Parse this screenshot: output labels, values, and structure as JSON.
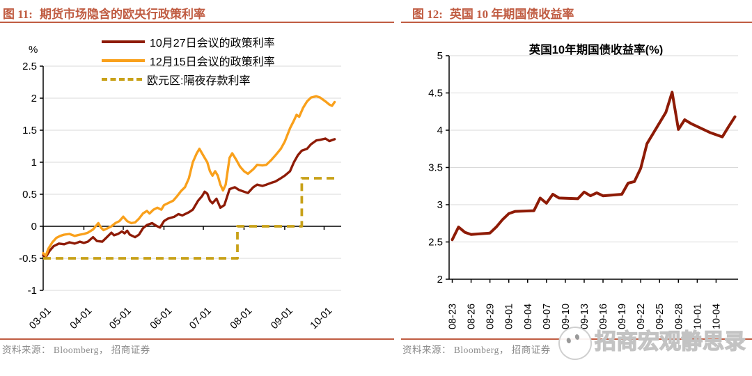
{
  "colors": {
    "accent": "#c05c42",
    "dark_red": "#8e1b06",
    "orange": "#f9a01b",
    "gold": "#c8a118",
    "grid": "#d9d9d9",
    "axis": "#000000",
    "source_text": "#8a8a8a",
    "watermark": "#c9c9c9"
  },
  "left_panel": {
    "figure_label": "图 11:",
    "figure_title": "期货市场隐含的欧央行政策利率",
    "source": "资料来源： Bloomberg， 招商证券"
  },
  "right_panel": {
    "figure_label": "图 12:",
    "figure_title": "英国 10 年期国债收益率",
    "source": "资料来源： Bloomberg， 招商证券"
  },
  "watermark": {
    "text": "招商宏观静思录",
    "icon": "wechat-mascot-icon"
  },
  "chart_data": [
    {
      "type": "line",
      "title": "",
      "unit_label": "%",
      "grid": true,
      "legend_position": "top-center",
      "x_axis_at": 0,
      "x_domain": [
        0,
        227
      ],
      "ylim": [
        -1,
        2.5
      ],
      "y_ticks": [
        2.5,
        2,
        1.5,
        1,
        0.5,
        0,
        -0.5,
        -1
      ],
      "x_tick_labels": [
        "03-01",
        "04-01",
        "05-01",
        "06-01",
        "07-01",
        "08-01",
        "09-01",
        "10-01"
      ],
      "x_tick_days": [
        0,
        31,
        61,
        92,
        122,
        153,
        184,
        214
      ],
      "series": [
        {
          "name": "10月27日会议的政策利率",
          "color_key": "dark_red",
          "style": "solid",
          "width": 3.4,
          "points": [
            [
              0,
              -0.45
            ],
            [
              2,
              -0.48
            ],
            [
              5,
              -0.38
            ],
            [
              8,
              -0.31
            ],
            [
              12,
              -0.27
            ],
            [
              16,
              -0.28
            ],
            [
              20,
              -0.25
            ],
            [
              24,
              -0.27
            ],
            [
              28,
              -0.24
            ],
            [
              31,
              -0.26
            ],
            [
              34,
              -0.24
            ],
            [
              38,
              -0.17
            ],
            [
              41,
              -0.23
            ],
            [
              45,
              -0.24
            ],
            [
              48,
              -0.18
            ],
            [
              52,
              -0.1
            ],
            [
              54,
              -0.14
            ],
            [
              57,
              -0.12
            ],
            [
              60,
              -0.08
            ],
            [
              62,
              -0.11
            ],
            [
              64,
              -0.07
            ],
            [
              66,
              -0.13
            ],
            [
              70,
              -0.17
            ],
            [
              73,
              -0.13
            ],
            [
              76,
              -0.03
            ],
            [
              79,
              0.02
            ],
            [
              83,
              0.05
            ],
            [
              86,
              0.01
            ],
            [
              89,
              -0.02
            ],
            [
              92,
              0.08
            ],
            [
              95,
              0.12
            ],
            [
              100,
              0.15
            ],
            [
              103,
              0.19
            ],
            [
              106,
              0.17
            ],
            [
              111,
              0.22
            ],
            [
              114,
              0.26
            ],
            [
              118,
              0.4
            ],
            [
              121,
              0.47
            ],
            [
              123,
              0.54
            ],
            [
              125,
              0.51
            ],
            [
              127,
              0.4
            ],
            [
              129,
              0.36
            ],
            [
              132,
              0.43
            ],
            [
              135,
              0.29
            ],
            [
              138,
              0.33
            ],
            [
              142,
              0.58
            ],
            [
              146,
              0.61
            ],
            [
              149,
              0.57
            ],
            [
              153,
              0.54
            ],
            [
              156,
              0.52
            ],
            [
              160,
              0.61
            ],
            [
              163,
              0.65
            ],
            [
              167,
              0.63
            ],
            [
              170,
              0.65
            ],
            [
              174,
              0.68
            ],
            [
              177,
              0.7
            ],
            [
              181,
              0.75
            ],
            [
              184,
              0.79
            ],
            [
              188,
              0.86
            ],
            [
              191,
              1.0
            ],
            [
              194,
              1.11
            ],
            [
              197,
              1.18
            ],
            [
              201,
              1.21
            ],
            [
              204,
              1.28
            ],
            [
              208,
              1.34
            ],
            [
              211,
              1.35
            ],
            [
              215,
              1.37
            ],
            [
              218,
              1.33
            ],
            [
              222,
              1.36
            ]
          ]
        },
        {
          "name": "12月15日会议的政策利率",
          "color_key": "orange",
          "style": "solid",
          "width": 3.4,
          "points": [
            [
              0,
              -0.42
            ],
            [
              2,
              -0.46
            ],
            [
              4,
              -0.35
            ],
            [
              7,
              -0.25
            ],
            [
              10,
              -0.18
            ],
            [
              13,
              -0.15
            ],
            [
              16,
              -0.13
            ],
            [
              20,
              -0.12
            ],
            [
              24,
              -0.15
            ],
            [
              28,
              -0.13
            ],
            [
              31,
              -0.12
            ],
            [
              34,
              -0.1
            ],
            [
              38,
              -0.05
            ],
            [
              42,
              0.05
            ],
            [
              44,
              -0.02
            ],
            [
              46,
              -0.06
            ],
            [
              49,
              -0.03
            ],
            [
              52,
              0.0
            ],
            [
              55,
              0.05
            ],
            [
              58,
              0.08
            ],
            [
              61,
              0.15
            ],
            [
              64,
              0.08
            ],
            [
              67,
              0.05
            ],
            [
              70,
              0.06
            ],
            [
              73,
              0.12
            ],
            [
              76,
              0.2
            ],
            [
              79,
              0.24
            ],
            [
              81,
              0.2
            ],
            [
              84,
              0.26
            ],
            [
              87,
              0.29
            ],
            [
              90,
              0.26
            ],
            [
              92,
              0.33
            ],
            [
              95,
              0.36
            ],
            [
              99,
              0.4
            ],
            [
              102,
              0.47
            ],
            [
              105,
              0.55
            ],
            [
              108,
              0.61
            ],
            [
              111,
              0.75
            ],
            [
              114,
              1.0
            ],
            [
              117,
              1.14
            ],
            [
              119,
              1.21
            ],
            [
              121,
              1.14
            ],
            [
              123,
              1.07
            ],
            [
              125,
              1.0
            ],
            [
              127,
              0.86
            ],
            [
              129,
              0.79
            ],
            [
              131,
              0.86
            ],
            [
              133,
              0.79
            ],
            [
              135,
              0.65
            ],
            [
              137,
              0.56
            ],
            [
              139,
              0.65
            ],
            [
              142,
              1.07
            ],
            [
              144,
              1.14
            ],
            [
              147,
              1.04
            ],
            [
              150,
              0.93
            ],
            [
              153,
              0.86
            ],
            [
              156,
              0.82
            ],
            [
              160,
              0.89
            ],
            [
              163,
              0.96
            ],
            [
              167,
              0.95
            ],
            [
              170,
              0.96
            ],
            [
              174,
              1.04
            ],
            [
              177,
              1.11
            ],
            [
              181,
              1.21
            ],
            [
              184,
              1.32
            ],
            [
              188,
              1.53
            ],
            [
              191,
              1.65
            ],
            [
              193,
              1.74
            ],
            [
              195,
              1.71
            ],
            [
              198,
              1.85
            ],
            [
              201,
              1.95
            ],
            [
              204,
              2.01
            ],
            [
              208,
              2.03
            ],
            [
              211,
              2.01
            ],
            [
              215,
              1.95
            ],
            [
              218,
              1.9
            ],
            [
              220,
              1.88
            ],
            [
              222,
              1.94
            ]
          ]
        },
        {
          "name": "欧元区:隔夜存款利率",
          "color_key": "gold",
          "style": "dashed",
          "width": 3.8,
          "points": [
            [
              0,
              -0.5
            ],
            [
              148,
              -0.5
            ],
            [
              148,
              0
            ],
            [
              197,
              0
            ],
            [
              197,
              0.75
            ],
            [
              222,
              0.75
            ]
          ]
        }
      ]
    },
    {
      "type": "line",
      "title": "英国10年期国债收益率(%)",
      "grid": true,
      "x_axis_at": 2,
      "x_domain": [
        -0.5,
        45.5
      ],
      "ylim": [
        2,
        5
      ],
      "y_ticks": [
        5,
        4.5,
        4,
        3.5,
        3,
        2.5,
        2
      ],
      "x_tick_labels": [
        "08-23",
        "08-26",
        "08-29",
        "09-01",
        "09-04",
        "09-07",
        "09-10",
        "09-13",
        "09-16",
        "09-19",
        "09-22",
        "09-25",
        "09-28",
        "10-01",
        "10-04"
      ],
      "x_tick_days": [
        0,
        3,
        6,
        9,
        12,
        15,
        18,
        21,
        24,
        27,
        30,
        33,
        36,
        39,
        42
      ],
      "series": [
        {
          "name": "英国10年期国债收益率(%)",
          "color_key": "dark_red",
          "style": "solid",
          "width": 4,
          "points": [
            [
              0,
              2.53
            ],
            [
              1,
              2.7
            ],
            [
              2,
              2.63
            ],
            [
              3,
              2.6
            ],
            [
              6,
              2.62
            ],
            [
              7,
              2.7
            ],
            [
              8,
              2.8
            ],
            [
              9,
              2.88
            ],
            [
              10,
              2.91
            ],
            [
              13,
              2.92
            ],
            [
              14,
              3.09
            ],
            [
              15,
              3.02
            ],
            [
              16,
              3.14
            ],
            [
              17,
              3.09
            ],
            [
              20,
              3.08
            ],
            [
              21,
              3.17
            ],
            [
              22,
              3.12
            ],
            [
              23,
              3.16
            ],
            [
              24,
              3.12
            ],
            [
              27,
              3.14
            ],
            [
              28,
              3.29
            ],
            [
              29,
              3.31
            ],
            [
              30,
              3.49
            ],
            [
              31,
              3.82
            ],
            [
              34,
              4.24
            ],
            [
              35,
              4.51
            ],
            [
              36,
              4.01
            ],
            [
              37,
              4.14
            ],
            [
              38,
              4.09
            ],
            [
              41,
              3.97
            ],
            [
              43,
              3.91
            ],
            [
              44,
              4.05
            ],
            [
              45,
              4.18
            ]
          ]
        }
      ]
    }
  ]
}
